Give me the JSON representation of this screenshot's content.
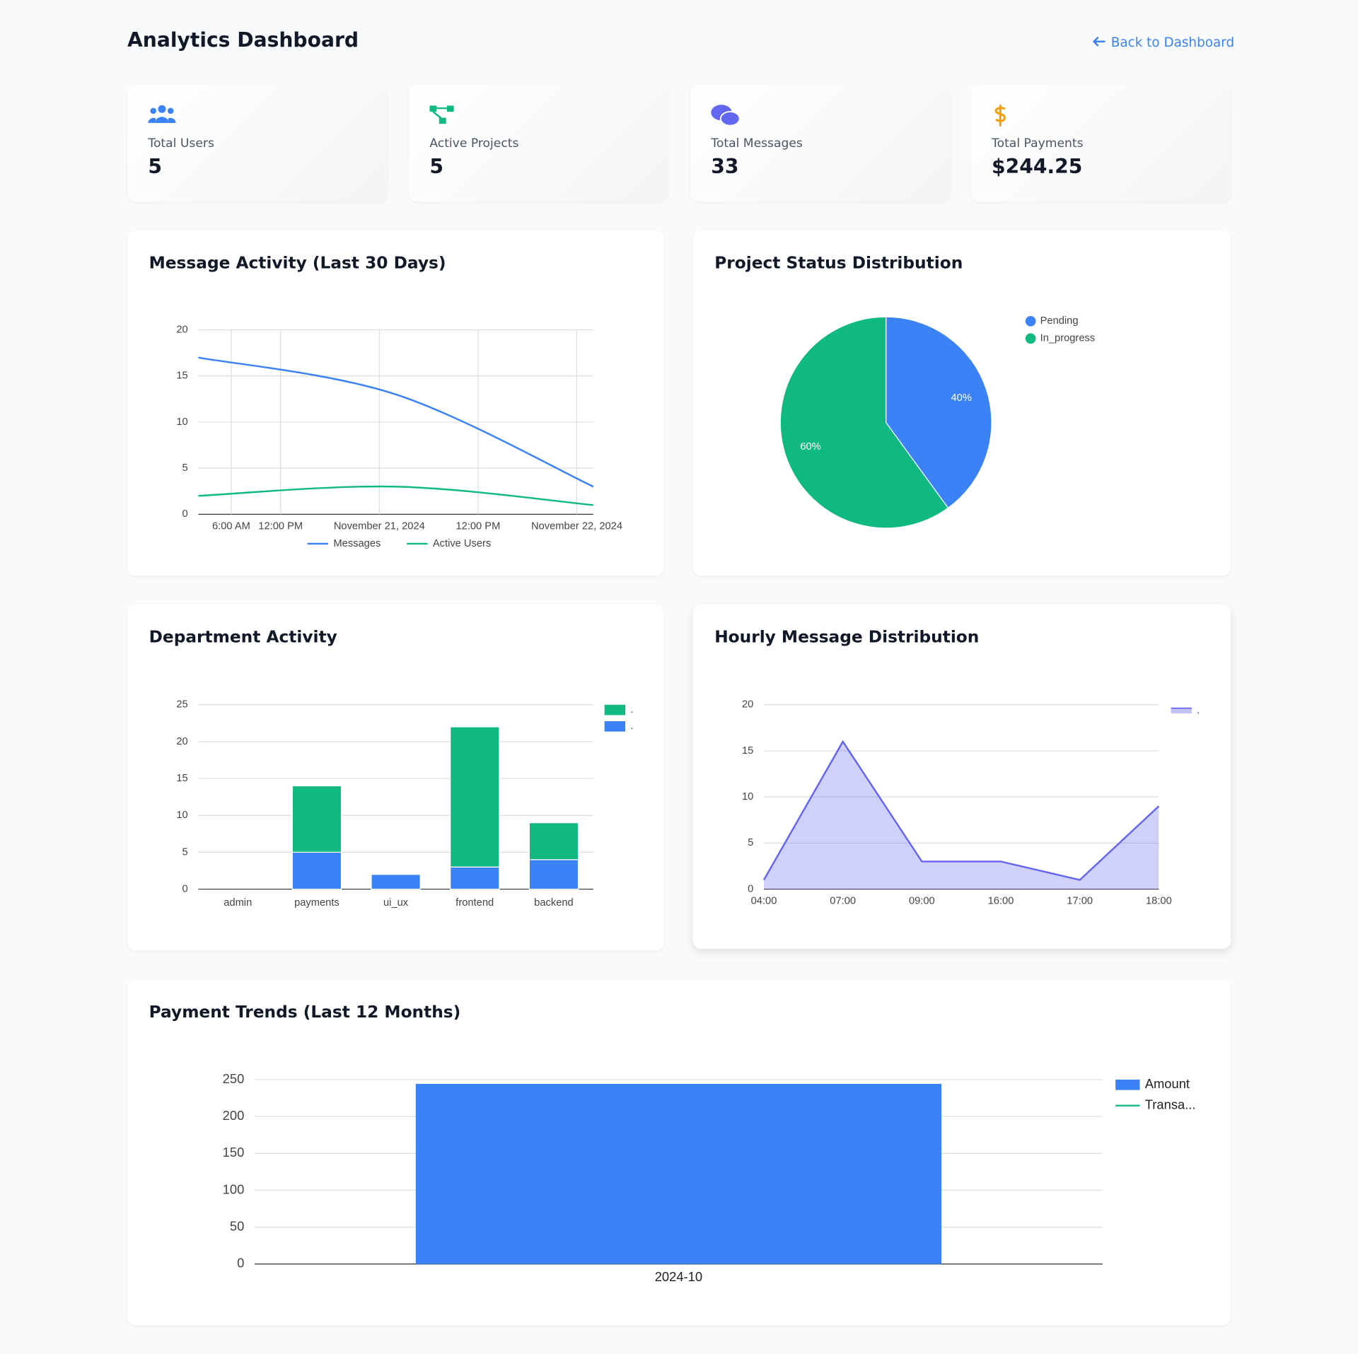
{
  "header": {
    "title": "Analytics Dashboard",
    "link": "Back to Dashboard"
  },
  "stats": [
    {
      "label": "Total Users",
      "value": "5"
    },
    {
      "label": "Active Projects",
      "value": "5"
    },
    {
      "label": "Total Messages",
      "value": "33"
    },
    {
      "label": "Total Payments",
      "value": "$244.25"
    }
  ],
  "chart_data": [
    {
      "type": "line",
      "title": "Message Activity (Last 30 Days)",
      "x": [
        "2024-11-20T02:00",
        "2024-11-21T02:00",
        "2024-11-22T02:00"
      ],
      "series": [
        {
          "name": "Messages",
          "color": "#3b82f6",
          "values": [
            17,
            13,
            3
          ]
        },
        {
          "name": "Active Users",
          "color": "#10b981",
          "values": [
            2,
            3,
            1
          ]
        }
      ],
      "xlim": [
        "2024-11-20T02:00",
        "2024-11-22T02:00"
      ],
      "xticks": [
        {
          "value": "2024-11-20T06:00",
          "label": "6:00 AM"
        },
        {
          "value": "2024-11-20T12:00",
          "label": "12:00 PM"
        },
        {
          "value": "2024-11-21T00:00",
          "label": "November 21, 2024"
        },
        {
          "value": "2024-11-21T12:00",
          "label": "12:00 PM"
        },
        {
          "value": "2024-11-22T00:00",
          "label": "November 22, 2024"
        }
      ],
      "ylim": [
        0,
        20
      ],
      "yticks": [
        0,
        5,
        10,
        15,
        20
      ],
      "grid": true,
      "legend": "bottom"
    },
    {
      "type": "pie",
      "title": "Project Status Distribution",
      "categories": [
        "Pending",
        "In_progress"
      ],
      "values": [
        40,
        60
      ],
      "value_labels": [
        "40%",
        "60%"
      ],
      "colors": [
        "#3b82f6",
        "#10b981"
      ],
      "legend": "right"
    },
    {
      "type": "bar",
      "title": "Department Activity",
      "stacked": true,
      "categories": [
        "admin",
        "payments",
        "ui_ux",
        "frontend",
        "backend"
      ],
      "series": [
        {
          "name": ".",
          "color": "#3b82f6",
          "values": [
            0,
            5,
            2,
            3,
            4
          ]
        },
        {
          "name": ".",
          "color": "#10b981",
          "values": [
            0,
            9,
            0,
            19,
            5
          ]
        }
      ],
      "ylim": [
        0,
        25
      ],
      "yticks": [
        0,
        5,
        10,
        15,
        20,
        25
      ],
      "grid": true,
      "legend": "right"
    },
    {
      "type": "area",
      "title": "Hourly Message Distribution",
      "categories": [
        "04:00",
        "07:00",
        "09:00",
        "16:00",
        "17:00",
        "18:00"
      ],
      "series": [
        {
          "name": ".",
          "color": "#6366f1",
          "values": [
            1,
            16,
            3,
            3,
            1,
            9
          ]
        }
      ],
      "ylim": [
        0,
        20
      ],
      "yticks": [
        0,
        5,
        10,
        15,
        20
      ],
      "grid": true,
      "legend": "right"
    },
    {
      "type": "bar",
      "title": "Payment Trends (Last 12 Months)",
      "categories": [
        "2024-10"
      ],
      "series": [
        {
          "name": "Amount",
          "color": "#3b82f6",
          "values": [
            244.25
          ]
        },
        {
          "name": "Transa...",
          "color": "#10b981",
          "type": "line",
          "values": [
            null
          ]
        }
      ],
      "ylim": [
        0,
        250
      ],
      "yticks": [
        0,
        50,
        100,
        150,
        200,
        250
      ],
      "grid": true,
      "legend": "right"
    }
  ]
}
